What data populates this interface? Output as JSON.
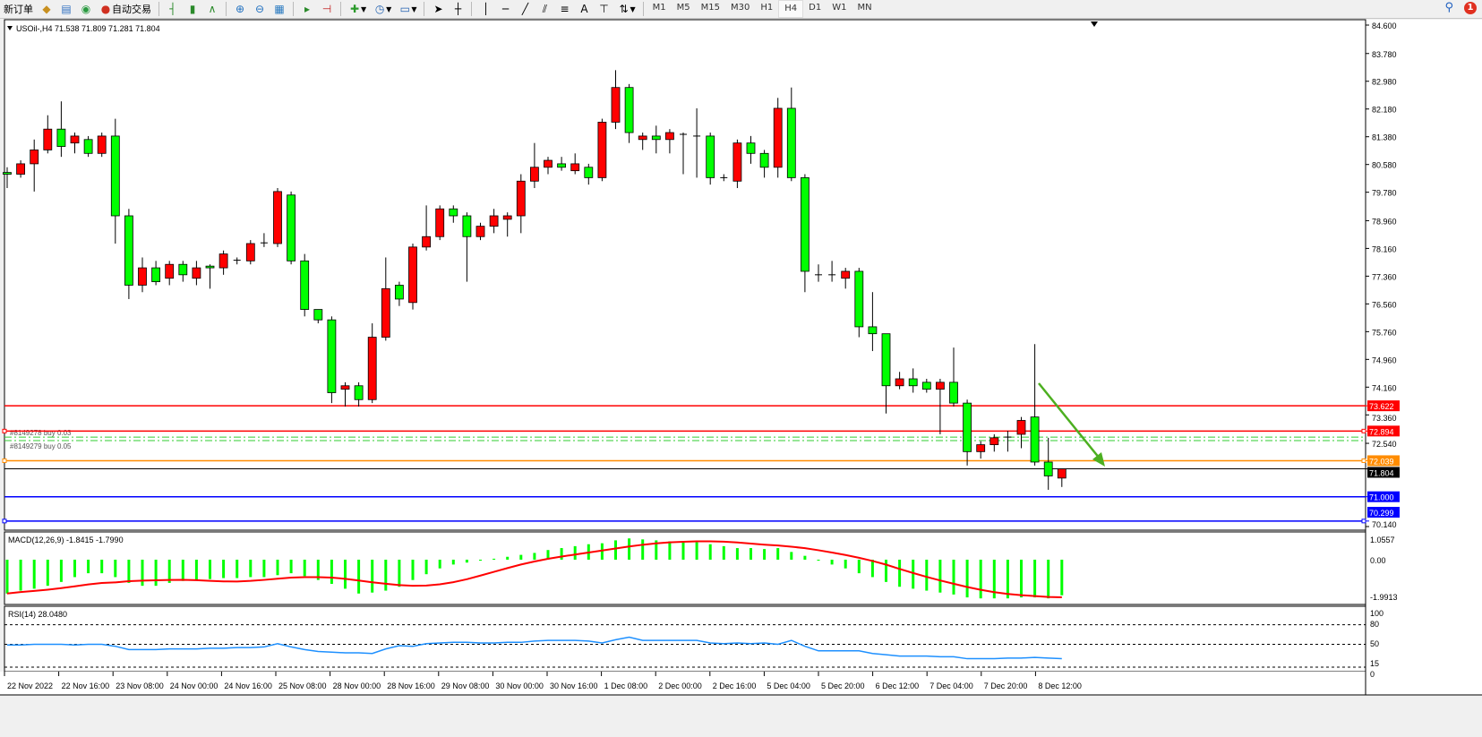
{
  "toolbar": {
    "new_order": "新订单",
    "auto_trading": "自动交易",
    "icons": [
      "market-watch-icon",
      "data-window-icon",
      "signals-icon",
      "bar-chart-icon",
      "candlestick-icon",
      "line-chart-icon",
      "zoom-in-icon",
      "zoom-out-icon",
      "tile-windows-icon",
      "chart-shift-icon",
      "autoscroll-icon",
      "indicators-icon",
      "periods-icon",
      "templates-icon",
      "cursor-icon",
      "crosshair-icon",
      "vertical-line-icon",
      "horizontal-line-icon",
      "trendline-icon",
      "equidistant-channel-icon",
      "fibonacci-icon",
      "text-icon",
      "text-label-icon",
      "arrows-icon"
    ],
    "text_tool": "A",
    "timeframes": [
      "M1",
      "M5",
      "M15",
      "M30",
      "H1",
      "H4",
      "D1",
      "W1",
      "MN"
    ],
    "active_timeframe": "H4",
    "notification_count": "1"
  },
  "chart": {
    "header": "USOil-,H4  71.538 71.809 71.281 71.804",
    "colors": {
      "bull": "#ff0000",
      "bear": "#00ff00",
      "macd": "#00ff00",
      "signal": "#ff0000",
      "rsi": "#1e90ff",
      "arrow": "#4caf20"
    },
    "price_ticks": [
      "84.600",
      "83.780",
      "82.980",
      "82.180",
      "81.380",
      "80.580",
      "79.780",
      "78.960",
      "78.160",
      "77.360",
      "76.560",
      "75.760",
      "74.960",
      "74.160",
      "73.360",
      "72.540",
      "70.140"
    ],
    "levels": [
      {
        "price": 73.622,
        "label": "73.622",
        "color": "#ff0000",
        "handles": false
      },
      {
        "price": 72.894,
        "label": "72.894",
        "color": "#ff0000",
        "handles": true
      },
      {
        "price": 72.039,
        "label": "72.039",
        "color": "#ff8c00",
        "handles": true
      },
      {
        "price": 71.804,
        "label": "71.804",
        "color": "#000000",
        "handles": false
      },
      {
        "price": 71.0,
        "label": "71.000",
        "color": "#0000ff",
        "handles": false
      },
      {
        "price": 70.299,
        "label": "70.299",
        "color": "#0000ff",
        "handles": true
      }
    ],
    "orders": [
      {
        "price": 72.72,
        "label": "#8149278 buy 0.03"
      },
      {
        "price": 72.62,
        "label": "#8149279 buy 0.05"
      }
    ],
    "time_labels": [
      "22 Nov 2022",
      "22 Nov 16:00",
      "23 Nov 08:00",
      "24 Nov 00:00",
      "24 Nov 16:00",
      "25 Nov 08:00",
      "28 Nov 00:00",
      "28 Nov 16:00",
      "29 Nov 08:00",
      "30 Nov 00:00",
      "30 Nov 16:00",
      "1 Dec 08:00",
      "2 Dec 00:00",
      "2 Dec 16:00",
      "5 Dec 04:00",
      "5 Dec 20:00",
      "6 Dec 12:00",
      "7 Dec 04:00",
      "7 Dec 20:00",
      "8 Dec 12:00"
    ]
  },
  "macd": {
    "header": "MACD(12,26,9) -1.8415 -1.7990",
    "ticks": [
      "1.0557",
      "0.00",
      "-1.9913"
    ]
  },
  "rsi": {
    "header": "RSI(14) 28.0480",
    "ticks": [
      "100",
      "80",
      "50",
      "15",
      "0"
    ]
  },
  "chart_data": {
    "type": "candlestick",
    "symbol": "USOil-",
    "timeframe": "H4",
    "ylim": [
      70.14,
      84.6
    ],
    "ohlc": [
      [
        80.35,
        80.5,
        79.9,
        80.3
      ],
      [
        80.3,
        80.7,
        80.2,
        80.6
      ],
      [
        80.6,
        81.3,
        79.8,
        81.0
      ],
      [
        81.0,
        82.0,
        80.9,
        81.6
      ],
      [
        81.6,
        82.4,
        80.8,
        81.1
      ],
      [
        81.2,
        81.5,
        80.9,
        81.4
      ],
      [
        81.3,
        81.4,
        80.8,
        80.9
      ],
      [
        80.9,
        81.5,
        80.8,
        81.4
      ],
      [
        81.4,
        81.9,
        78.3,
        79.1
      ],
      [
        79.1,
        79.3,
        76.7,
        77.1
      ],
      [
        77.1,
        77.9,
        76.9,
        77.6
      ],
      [
        77.6,
        77.8,
        77.1,
        77.2
      ],
      [
        77.3,
        77.8,
        77.1,
        77.7
      ],
      [
        77.7,
        77.8,
        77.2,
        77.4
      ],
      [
        77.3,
        77.8,
        77.1,
        77.6
      ],
      [
        77.65,
        77.7,
        77.0,
        77.6
      ],
      [
        77.6,
        78.1,
        77.4,
        78.0
      ],
      [
        77.8,
        77.9,
        77.7,
        77.82
      ],
      [
        77.8,
        78.4,
        77.7,
        78.3
      ],
      [
        78.3,
        78.6,
        78.2,
        78.32
      ],
      [
        78.3,
        79.9,
        78.2,
        79.8
      ],
      [
        79.7,
        79.8,
        77.7,
        77.8
      ],
      [
        77.8,
        78.0,
        76.2,
        76.4
      ],
      [
        76.4,
        76.4,
        76.0,
        76.1
      ],
      [
        76.1,
        76.2,
        73.7,
        74.0
      ],
      [
        74.1,
        74.3,
        73.6,
        74.2
      ],
      [
        74.2,
        74.3,
        73.6,
        73.8
      ],
      [
        73.8,
        76.0,
        73.7,
        75.6
      ],
      [
        75.6,
        77.9,
        75.5,
        77.0
      ],
      [
        77.1,
        77.2,
        76.5,
        76.7
      ],
      [
        76.6,
        78.3,
        76.4,
        78.2
      ],
      [
        78.2,
        79.4,
        78.1,
        78.5
      ],
      [
        78.5,
        79.4,
        78.4,
        79.3
      ],
      [
        79.3,
        79.4,
        78.9,
        79.1
      ],
      [
        79.1,
        79.2,
        77.2,
        78.5
      ],
      [
        78.5,
        78.9,
        78.4,
        78.8
      ],
      [
        78.8,
        79.3,
        78.6,
        79.1
      ],
      [
        79.0,
        79.2,
        78.5,
        79.1
      ],
      [
        79.1,
        80.3,
        78.6,
        80.1
      ],
      [
        80.1,
        81.2,
        79.9,
        80.5
      ],
      [
        80.5,
        80.8,
        80.3,
        80.7
      ],
      [
        80.6,
        80.8,
        80.4,
        80.5
      ],
      [
        80.4,
        80.9,
        80.3,
        80.6
      ],
      [
        80.5,
        80.6,
        80.0,
        80.2
      ],
      [
        80.2,
        81.9,
        80.1,
        81.8
      ],
      [
        81.8,
        83.3,
        81.6,
        82.8
      ],
      [
        82.8,
        82.9,
        81.2,
        81.5
      ],
      [
        81.3,
        81.5,
        81.0,
        81.4
      ],
      [
        81.4,
        81.7,
        80.9,
        81.3
      ],
      [
        81.3,
        81.6,
        80.9,
        81.5
      ],
      [
        81.45,
        81.5,
        80.3,
        81.42
      ],
      [
        81.4,
        82.2,
        80.2,
        81.38
      ],
      [
        81.4,
        81.5,
        80.0,
        80.2
      ],
      [
        80.2,
        80.3,
        80.1,
        80.18
      ],
      [
        80.1,
        81.3,
        79.9,
        81.2
      ],
      [
        81.2,
        81.4,
        80.6,
        80.9
      ],
      [
        80.9,
        81.0,
        80.2,
        80.5
      ],
      [
        80.5,
        82.5,
        80.2,
        82.2
      ],
      [
        82.2,
        82.8,
        80.1,
        80.2
      ],
      [
        80.2,
        80.3,
        76.9,
        77.5
      ],
      [
        77.4,
        77.7,
        77.2,
        77.38
      ],
      [
        77.4,
        77.8,
        77.2,
        77.38
      ],
      [
        77.3,
        77.6,
        77.0,
        77.5
      ],
      [
        77.5,
        77.6,
        75.6,
        75.9
      ],
      [
        75.9,
        76.9,
        75.2,
        75.7
      ],
      [
        75.7,
        75.7,
        73.4,
        74.2
      ],
      [
        74.2,
        74.6,
        74.1,
        74.4
      ],
      [
        74.4,
        74.7,
        74.0,
        74.2
      ],
      [
        74.3,
        74.4,
        74.0,
        74.1
      ],
      [
        74.1,
        74.4,
        72.8,
        74.3
      ],
      [
        74.3,
        75.3,
        73.6,
        73.7
      ],
      [
        73.7,
        73.8,
        71.9,
        72.3
      ],
      [
        72.3,
        72.6,
        72.1,
        72.5
      ],
      [
        72.5,
        72.8,
        72.3,
        72.7
      ],
      [
        72.7,
        72.9,
        72.3,
        72.72
      ],
      [
        72.8,
        73.3,
        72.4,
        73.2
      ],
      [
        73.3,
        75.4,
        71.9,
        72.0
      ],
      [
        72.0,
        72.7,
        71.2,
        71.6
      ],
      [
        71.538,
        71.809,
        71.281,
        71.804
      ]
    ],
    "macd_main": [
      -1.75,
      -1.6,
      -1.5,
      -1.35,
      -1.15,
      -0.9,
      -0.7,
      -0.7,
      -0.9,
      -1.2,
      -1.35,
      -1.35,
      -1.2,
      -1.1,
      -1.05,
      -1.0,
      -0.95,
      -0.95,
      -0.9,
      -0.9,
      -0.8,
      -0.7,
      -0.85,
      -1.05,
      -1.25,
      -1.5,
      -1.75,
      -1.7,
      -1.6,
      -1.4,
      -1.05,
      -0.75,
      -0.45,
      -0.25,
      -0.15,
      -0.05,
      0.05,
      0.15,
      0.25,
      0.35,
      0.5,
      0.6,
      0.7,
      0.8,
      0.85,
      1.0,
      1.1,
      1.05,
      1.0,
      0.95,
      0.9,
      0.9,
      0.8,
      0.7,
      0.6,
      0.6,
      0.55,
      0.6,
      0.4,
      0.2,
      -0.05,
      -0.25,
      -0.45,
      -0.7,
      -0.9,
      -1.15,
      -1.4,
      -1.5,
      -1.6,
      -1.7,
      -1.8,
      -1.95,
      -2.0,
      -2.0,
      -2.0,
      -1.95,
      -1.95,
      -2.0,
      -1.84
    ],
    "macd_ylim": [
      -1.9913,
      1.0557
    ],
    "rsi": [
      49,
      49,
      50,
      50,
      50,
      49,
      50,
      50,
      47,
      42,
      42,
      42,
      43,
      43,
      43,
      44,
      44,
      45,
      45,
      46,
      51,
      46,
      42,
      39,
      38,
      37,
      37,
      36,
      43,
      48,
      47,
      51,
      52,
      53,
      53,
      52,
      52,
      53,
      53,
      55,
      56,
      56,
      56,
      55,
      52,
      57,
      61,
      56,
      56,
      56,
      56,
      56,
      52,
      51,
      52,
      51,
      52,
      50,
      56,
      47,
      40,
      40,
      40,
      40,
      36,
      34,
      32,
      32,
      32,
      31,
      31,
      28,
      28,
      28,
      29,
      29,
      30,
      29,
      28
    ],
    "rsi_levels": [
      80,
      50,
      15
    ]
  }
}
